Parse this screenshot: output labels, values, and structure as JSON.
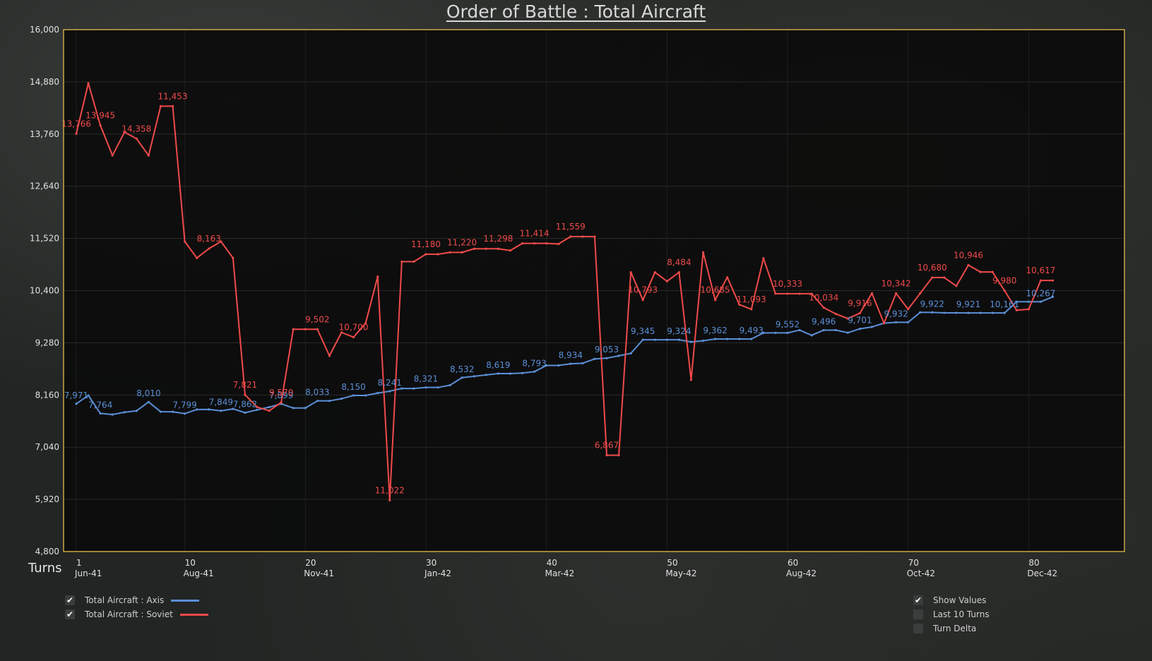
{
  "title": "Order of Battle : Total Aircraft",
  "colors": {
    "axis": "#5b8fd6",
    "soviet": "#f04a4a",
    "frame": "#c9a64a",
    "plot_bg": "#0b0b0b"
  },
  "legend": {
    "items": [
      {
        "label": "Total Aircraft : Axis",
        "checked": true,
        "color": "#5b8fd6"
      },
      {
        "label": "Total Aircraft : Soviet",
        "checked": true,
        "color": "#f04a4a"
      }
    ]
  },
  "options": {
    "items": [
      {
        "label": "Show Values",
        "checked": true
      },
      {
        "label": "Last 10 Turns",
        "checked": false
      },
      {
        "label": "Turn Delta",
        "checked": false
      }
    ]
  },
  "chart_data": {
    "type": "line",
    "title": "Order of Battle : Total Aircraft",
    "xlabel": "Turns",
    "ylabel": "",
    "xlim": [
      0,
      88
    ],
    "ylim": [
      4800,
      16000
    ],
    "yticks": [
      4800,
      5920,
      7040,
      8160,
      9280,
      10400,
      11520,
      12640,
      13760,
      14880,
      16000
    ],
    "ytick_labels": [
      "4,800",
      "5,920",
      "7,040",
      "8,160",
      "9,280",
      "10,400",
      "11,520",
      "12,640",
      "13,760",
      "14,880",
      "16,000"
    ],
    "xticks": [
      {
        "turn": 1,
        "date": "Jun-41"
      },
      {
        "turn": 10,
        "date": "Aug-41"
      },
      {
        "turn": 20,
        "date": "Nov-41"
      },
      {
        "turn": 30,
        "date": "Jan-42"
      },
      {
        "turn": 40,
        "date": "Mar-42"
      },
      {
        "turn": 50,
        "date": "May-42"
      },
      {
        "turn": 60,
        "date": "Aug-42"
      },
      {
        "turn": 70,
        "date": "Oct-42"
      },
      {
        "turn": 80,
        "date": "Dec-42"
      }
    ],
    "grid": true,
    "legend_position": "bottom-left",
    "x": [
      0,
      1,
      2,
      3,
      4,
      5,
      6,
      7,
      8,
      9,
      10,
      11,
      12,
      13,
      14,
      15,
      16,
      17,
      18,
      19,
      20,
      21,
      22,
      23,
      24,
      25,
      26,
      27,
      28,
      29,
      30,
      31,
      32,
      33,
      34,
      35,
      36,
      37,
      38,
      39,
      40,
      41,
      42,
      43,
      44,
      45,
      46,
      47,
      48,
      49,
      50,
      51,
      52,
      53,
      54,
      55,
      56,
      57,
      58,
      59,
      60,
      61,
      62,
      63,
      64,
      65,
      66,
      67,
      68,
      69,
      70,
      71,
      72,
      73,
      74,
      75,
      76,
      77,
      78,
      79,
      80,
      81
    ],
    "series": [
      {
        "name": "Total Aircraft : Axis",
        "values": [
          7971,
          8150,
          7764,
          7740,
          7790,
          7820,
          8010,
          7800,
          7799,
          7760,
          7849,
          7850,
          7820,
          7862,
          7780,
          7840,
          7899,
          7970,
          7880,
          7880,
          8033,
          8033,
          8080,
          8150,
          8150,
          8200,
          8241,
          8300,
          8300,
          8321,
          8321,
          8370,
          8532,
          8560,
          8590,
          8619,
          8619,
          8630,
          8660,
          8793,
          8793,
          8830,
          8840,
          8934,
          8950,
          9000,
          9053,
          9345,
          9345,
          9345,
          9345,
          9300,
          9324,
          9362,
          9362,
          9362,
          9362,
          9493,
          9493,
          9493,
          9552,
          9440,
          9552,
          9552,
          9496,
          9580,
          9620,
          9701,
          9720,
          9720,
          9932,
          9932,
          9922,
          9922,
          9921,
          9921,
          9921,
          9921,
          10161,
          10161,
          10161,
          10267
        ]
      },
      {
        "name": "Total Aircraft : Soviet",
        "values": [
          13766,
          14850,
          13945,
          13300,
          13800,
          13660,
          13300,
          14358,
          14358,
          11453,
          11100,
          11300,
          11453,
          11100,
          8163,
          7900,
          7821,
          8000,
          9570,
          9570,
          9570,
          9000,
          9502,
          9400,
          9700,
          10700,
          5900,
          11022,
          11022,
          11180,
          11180,
          11220,
          11220,
          11298,
          11298,
          11298,
          11260,
          11414,
          11414,
          11414,
          11400,
          11559,
          11559,
          11559,
          6867,
          6867,
          10793,
          10200,
          10793,
          10600,
          10793,
          8484,
          11220,
          10200,
          10685,
          10100,
          10000,
          11093,
          10333,
          10333,
          10333,
          10333,
          10034,
          9900,
          9800,
          9916,
          10342,
          9700,
          10342,
          10000,
          10342,
          10680,
          10680,
          10500,
          10946,
          10800,
          10800,
          10400,
          9980,
          10000,
          10617,
          10617
        ]
      }
    ],
    "value_labels": {
      "axis": [
        {
          "x": 0,
          "text": "7,971"
        },
        {
          "x": 2,
          "text": "7,764"
        },
        {
          "x": 6,
          "text": "8,010"
        },
        {
          "x": 9,
          "text": "7,799"
        },
        {
          "x": 12,
          "text": "7,849"
        },
        {
          "x": 14,
          "text": "7,862"
        },
        {
          "x": 17,
          "text": "7,899"
        },
        {
          "x": 20,
          "text": "8,033"
        },
        {
          "x": 23,
          "text": "8,150"
        },
        {
          "x": 26,
          "text": "8,241"
        },
        {
          "x": 29,
          "text": "8,321"
        },
        {
          "x": 32,
          "text": "8,532"
        },
        {
          "x": 35,
          "text": "8,619"
        },
        {
          "x": 38,
          "text": "8,793"
        },
        {
          "x": 41,
          "text": "8,934"
        },
        {
          "x": 44,
          "text": "9,053"
        },
        {
          "x": 47,
          "text": "9,345"
        },
        {
          "x": 50,
          "text": "9,324"
        },
        {
          "x": 53,
          "text": "9,362"
        },
        {
          "x": 56,
          "text": "9,493"
        },
        {
          "x": 59,
          "text": "9,552"
        },
        {
          "x": 62,
          "text": "9,496"
        },
        {
          "x": 65,
          "text": "9,701"
        },
        {
          "x": 68,
          "text": "9,932"
        },
        {
          "x": 71,
          "text": "9,922"
        },
        {
          "x": 74,
          "text": "9,921"
        },
        {
          "x": 77,
          "text": "10,161"
        },
        {
          "x": 80,
          "text": "10,267"
        }
      ],
      "soviet": [
        {
          "x": 0,
          "text": "13,766"
        },
        {
          "x": 2,
          "text": "13,945"
        },
        {
          "x": 5,
          "text": "14,358"
        },
        {
          "x": 8,
          "text": "11,453"
        },
        {
          "x": 11,
          "text": "8,163"
        },
        {
          "x": 14,
          "text": "7,821"
        },
        {
          "x": 17,
          "text": "9,570"
        },
        {
          "x": 20,
          "text": "9,502"
        },
        {
          "x": 23,
          "text": "10,700"
        },
        {
          "x": 26,
          "text": "11,022"
        },
        {
          "x": 29,
          "text": "11,180"
        },
        {
          "x": 32,
          "text": "11,220"
        },
        {
          "x": 35,
          "text": "11,298"
        },
        {
          "x": 38,
          "text": "11,414"
        },
        {
          "x": 41,
          "text": "11,559"
        },
        {
          "x": 44,
          "text": "6,867"
        },
        {
          "x": 47,
          "text": "10,793"
        },
        {
          "x": 50,
          "text": "8,484"
        },
        {
          "x": 53,
          "text": "10,685"
        },
        {
          "x": 56,
          "text": "11,093"
        },
        {
          "x": 59,
          "text": "10,333"
        },
        {
          "x": 62,
          "text": "10,034"
        },
        {
          "x": 65,
          "text": "9,916"
        },
        {
          "x": 68,
          "text": "10,342"
        },
        {
          "x": 71,
          "text": "10,680"
        },
        {
          "x": 74,
          "text": "10,946"
        },
        {
          "x": 77,
          "text": "9,980"
        },
        {
          "x": 80,
          "text": "10,617"
        }
      ]
    }
  }
}
